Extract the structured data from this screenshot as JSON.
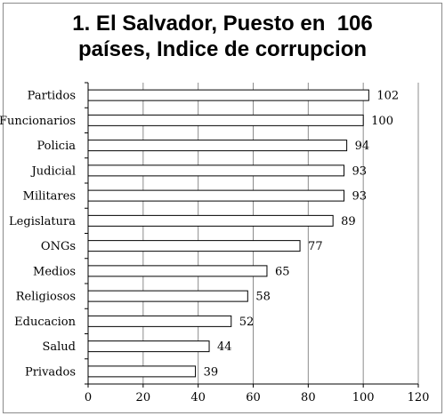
{
  "chart_data": {
    "type": "bar",
    "orientation": "horizontal",
    "title_lines": [
      "1. El Salvador, Puesto en  106",
      "países, Indice de corrupcion"
    ],
    "categories": [
      "Partidos",
      "Funcionarios",
      "Policia",
      "Judicial",
      "Militares",
      "Legislatura",
      "ONGs",
      "Medios",
      "Religiosos",
      "Educacion",
      "Salud",
      "Privados"
    ],
    "values": [
      102,
      100,
      94,
      93,
      93,
      89,
      77,
      65,
      58,
      52,
      44,
      39
    ],
    "xlim": [
      0,
      120
    ],
    "xticks": [
      0,
      20,
      40,
      60,
      80,
      100,
      120
    ],
    "grid": true,
    "legend": "none",
    "colors": {
      "bar_fill": "#ffffff",
      "bar_stroke": "#000000",
      "grid": "#8c8c8c",
      "axis": "#000000"
    }
  }
}
